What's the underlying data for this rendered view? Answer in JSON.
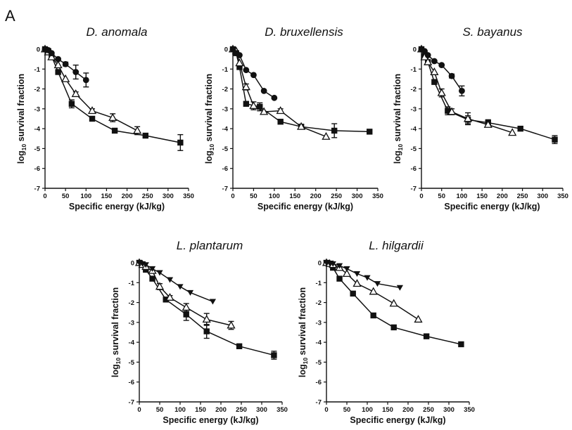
{
  "figure": {
    "panel_label": "A"
  },
  "chart_data": [
    {
      "type": "scatter",
      "title": "D. anomala",
      "xlabel": "Specific energy (kJ/kg)",
      "ylabel": "log10 survival fraction",
      "xlim": [
        0,
        350
      ],
      "ylim": [
        -7,
        0
      ],
      "xticks": [
        0,
        50,
        100,
        150,
        200,
        250,
        300,
        350
      ],
      "yticks": [
        0,
        -1,
        -2,
        -3,
        -4,
        -5,
        -6,
        -7
      ],
      "series": [
        {
          "marker": "square",
          "x": [
            0,
            8,
            16,
            32,
            65,
            115,
            170,
            245,
            330
          ],
          "y": [
            0,
            -0.1,
            -0.35,
            -1.15,
            -2.75,
            -3.5,
            -4.1,
            -4.35,
            -4.7
          ],
          "err": [
            0,
            0,
            0,
            0.1,
            0.2,
            0.1,
            0.05,
            0.05,
            0.4
          ]
        },
        {
          "marker": "triangle-open",
          "x": [
            0,
            8,
            16,
            32,
            50,
            75,
            115,
            165,
            225
          ],
          "y": [
            0,
            -0.15,
            -0.4,
            -0.8,
            -1.5,
            -2.25,
            -3.1,
            -3.45,
            -4.1
          ],
          "err": [
            0,
            0,
            0,
            0,
            0,
            0.1,
            0.1,
            0.2,
            0.2
          ]
        },
        {
          "marker": "circle",
          "x": [
            0,
            8,
            16,
            32,
            50,
            75,
            100
          ],
          "y": [
            0,
            -0.05,
            -0.2,
            -0.5,
            -0.75,
            -1.15,
            -1.55
          ],
          "err": [
            0,
            0,
            0,
            0,
            0.1,
            0.35,
            0.35
          ]
        }
      ]
    },
    {
      "type": "scatter",
      "title": "D. bruxellensis",
      "xlabel": "Specific energy (kJ/kg)",
      "ylabel": "log10 survival fraction",
      "xlim": [
        0,
        350
      ],
      "ylim": [
        -7,
        0
      ],
      "xticks": [
        0,
        50,
        100,
        150,
        200,
        250,
        300,
        350
      ],
      "yticks": [
        0,
        -1,
        -2,
        -3,
        -4,
        -5,
        -6,
        -7
      ],
      "series": [
        {
          "marker": "square",
          "x": [
            0,
            8,
            16,
            32,
            65,
            115,
            165,
            245,
            330
          ],
          "y": [
            0,
            -0.2,
            -0.9,
            -2.75,
            -2.9,
            -3.65,
            -3.9,
            -4.1,
            -4.15
          ],
          "err": [
            0,
            0,
            0,
            0,
            0.2,
            0.1,
            0.1,
            0.35,
            0
          ]
        },
        {
          "marker": "triangle-open",
          "x": [
            0,
            8,
            16,
            32,
            50,
            75,
            115,
            165,
            225
          ],
          "y": [
            0,
            -0.1,
            -0.7,
            -1.9,
            -2.85,
            -3.15,
            -3.1,
            -3.9,
            -4.4
          ],
          "err": [
            0,
            0,
            0,
            0.15,
            0.2,
            0,
            0.1,
            0.1,
            0
          ]
        },
        {
          "marker": "circle",
          "x": [
            0,
            8,
            16,
            32,
            50,
            75,
            100
          ],
          "y": [
            0,
            -0.2,
            -0.3,
            -1.05,
            -1.3,
            -2.1,
            -2.45
          ],
          "err": [
            0,
            0,
            0,
            0,
            0,
            0,
            0
          ]
        }
      ]
    },
    {
      "type": "scatter",
      "title": "S. bayanus",
      "xlabel": "Specific energy (kJ/kg)",
      "ylabel": "log10 survival fraction",
      "xlim": [
        0,
        350
      ],
      "ylim": [
        -7,
        0
      ],
      "xticks": [
        0,
        50,
        100,
        150,
        200,
        250,
        300,
        350
      ],
      "yticks": [
        0,
        -1,
        -2,
        -3,
        -4,
        -5,
        -6,
        -7
      ],
      "series": [
        {
          "marker": "square",
          "x": [
            0,
            8,
            16,
            32,
            65,
            115,
            165,
            245,
            330
          ],
          "y": [
            0,
            -0.35,
            -0.65,
            -1.65,
            -3.1,
            -3.55,
            -3.7,
            -4.0,
            -4.55
          ],
          "err": [
            0,
            0,
            0,
            0,
            0.2,
            0.2,
            0.15,
            0.1,
            0.2
          ]
        },
        {
          "marker": "triangle-open",
          "x": [
            0,
            8,
            16,
            32,
            50,
            75,
            115,
            165,
            225
          ],
          "y": [
            0,
            -0.4,
            -0.65,
            -1.15,
            -2.2,
            -3.15,
            -3.5,
            -3.8,
            -4.2
          ],
          "err": [
            0,
            0,
            0,
            0,
            0.2,
            0.15,
            0.3,
            0.1,
            0
          ]
        },
        {
          "marker": "circle",
          "x": [
            0,
            8,
            16,
            32,
            50,
            75,
            100
          ],
          "y": [
            0,
            -0.1,
            -0.3,
            -0.6,
            -0.8,
            -1.35,
            -2.1
          ],
          "err": [
            0,
            0,
            0,
            0,
            0,
            0.1,
            0.25
          ]
        }
      ]
    },
    {
      "type": "scatter",
      "title": "L. plantarum",
      "xlabel": "Specific energy (kJ/kg)",
      "ylabel": "log10 survival fraction",
      "xlim": [
        0,
        350
      ],
      "ylim": [
        -7,
        0
      ],
      "xticks": [
        0,
        50,
        100,
        150,
        200,
        250,
        300,
        350
      ],
      "yticks": [
        0,
        -1,
        -2,
        -3,
        -4,
        -5,
        -6,
        -7
      ],
      "series": [
        {
          "marker": "square",
          "x": [
            0,
            8,
            16,
            32,
            65,
            115,
            165,
            245,
            330
          ],
          "y": [
            0,
            -0.1,
            -0.35,
            -0.8,
            -1.85,
            -2.6,
            -3.45,
            -4.2,
            -4.65
          ],
          "err": [
            0,
            0,
            0,
            0,
            0.1,
            0.3,
            0.35,
            0.05,
            0.2
          ]
        },
        {
          "marker": "triangle-open",
          "x": [
            0,
            8,
            16,
            32,
            50,
            75,
            115,
            165,
            225
          ],
          "y": [
            0,
            -0.1,
            -0.2,
            -0.4,
            -1.2,
            -1.75,
            -2.25,
            -2.85,
            -3.15
          ],
          "err": [
            0,
            0,
            0,
            0,
            0.15,
            0.1,
            0.2,
            0.3,
            0.2
          ]
        },
        {
          "marker": "triangle-down",
          "x": [
            0,
            8,
            16,
            32,
            50,
            75,
            100,
            125,
            180
          ],
          "y": [
            0,
            -0.05,
            -0.1,
            -0.3,
            -0.5,
            -0.85,
            -1.2,
            -1.5,
            -1.95
          ],
          "err": [
            0,
            0,
            0,
            0,
            0,
            0,
            0,
            0,
            0
          ]
        }
      ]
    },
    {
      "type": "scatter",
      "title": "L. hilgardii",
      "xlabel": "Specific energy (kJ/kg)",
      "ylabel": "log10 survival fraction",
      "xlim": [
        0,
        350
      ],
      "ylim": [
        -7,
        0
      ],
      "xticks": [
        0,
        50,
        100,
        150,
        200,
        250,
        300,
        350
      ],
      "yticks": [
        0,
        -1,
        -2,
        -3,
        -4,
        -5,
        -6,
        -7
      ],
      "series": [
        {
          "marker": "square",
          "x": [
            0,
            8,
            16,
            32,
            65,
            115,
            165,
            245,
            330
          ],
          "y": [
            0,
            -0.05,
            -0.25,
            -0.8,
            -1.55,
            -2.65,
            -3.25,
            -3.7,
            -4.1
          ],
          "err": [
            0,
            0,
            0,
            0,
            0,
            0,
            0,
            0.1,
            0
          ]
        },
        {
          "marker": "triangle-open",
          "x": [
            0,
            8,
            16,
            32,
            50,
            75,
            115,
            165,
            225
          ],
          "y": [
            0,
            -0.05,
            -0.1,
            -0.25,
            -0.55,
            -1.05,
            -1.45,
            -2.05,
            -2.85
          ],
          "err": [
            0,
            0,
            0,
            0,
            0,
            0,
            0,
            0,
            0
          ]
        },
        {
          "marker": "triangle-down",
          "x": [
            0,
            8,
            16,
            32,
            50,
            75,
            100,
            125,
            180
          ],
          "y": [
            0,
            -0.02,
            -0.05,
            -0.15,
            -0.3,
            -0.55,
            -0.75,
            -1.05,
            -1.25
          ],
          "err": [
            0,
            0,
            0,
            0,
            0,
            0,
            0,
            0,
            0
          ]
        }
      ]
    }
  ]
}
